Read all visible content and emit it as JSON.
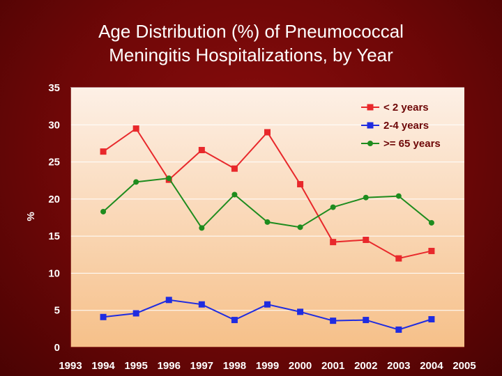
{
  "chart_data": {
    "type": "line",
    "title": [
      "Age Distribution (%) of Pneumococcal",
      "Meningitis Hospitalizations, by Year"
    ],
    "ylabel": "%",
    "xlabel": "",
    "ylim": [
      0,
      35
    ],
    "yticks": [
      0,
      5,
      10,
      15,
      20,
      25,
      30,
      35
    ],
    "x_tick_labels": [
      "1993",
      "1994",
      "1995",
      "1996",
      "1997",
      "1998",
      "1999",
      "2000",
      "2001",
      "2002",
      "2003",
      "2004",
      "2005"
    ],
    "x_range": [
      1993,
      2005
    ],
    "grid": "horizontal",
    "legend_position": "top-right",
    "series": [
      {
        "name": "< 2 years",
        "color": "#e8282b",
        "marker": "square",
        "points": [
          [
            1994,
            26.4
          ],
          [
            1995,
            29.5
          ],
          [
            1996,
            22.6
          ],
          [
            1997,
            26.6
          ],
          [
            1998,
            24.1
          ],
          [
            1999,
            29.0
          ],
          [
            2000,
            22.0
          ],
          [
            2001,
            14.2
          ],
          [
            2002,
            14.5
          ],
          [
            2003,
            12.0
          ],
          [
            2004,
            13.0
          ]
        ]
      },
      {
        "name": "2-4 years",
        "color": "#1f2ce0",
        "marker": "square",
        "points": [
          [
            1994,
            4.1
          ],
          [
            1995,
            4.6
          ],
          [
            1996,
            6.4
          ],
          [
            1997,
            5.8
          ],
          [
            1998,
            3.7
          ],
          [
            1999,
            5.8
          ],
          [
            2000,
            4.8
          ],
          [
            2001,
            3.6
          ],
          [
            2002,
            3.7
          ],
          [
            2003,
            2.4
          ],
          [
            2004,
            3.8
          ]
        ]
      },
      {
        "name": ">= 65 years",
        "color": "#1e8c1e",
        "marker": "circle",
        "points": [
          [
            1994,
            18.3
          ],
          [
            1995,
            22.3
          ],
          [
            1996,
            22.8
          ],
          [
            1997,
            16.1
          ],
          [
            1998,
            20.6
          ],
          [
            1999,
            16.9
          ],
          [
            2000,
            16.2
          ],
          [
            2001,
            18.9
          ],
          [
            2002,
            20.2
          ],
          [
            2003,
            20.4
          ],
          [
            2004,
            16.8
          ]
        ]
      }
    ]
  },
  "colors": {
    "background": "#6e0707",
    "plot_gradient_top": "#fdf0e6",
    "plot_gradient_bottom": "#f6c089",
    "text": "#ffffff",
    "legend_text": "#6e0707"
  }
}
